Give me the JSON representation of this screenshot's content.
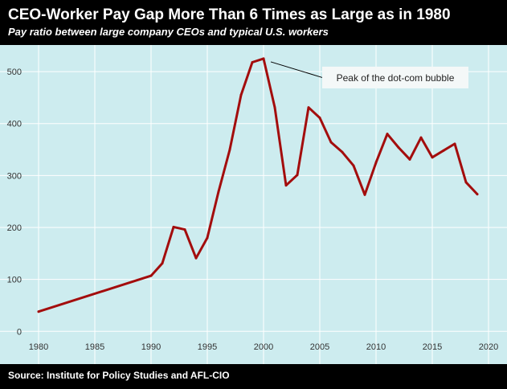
{
  "header": {
    "title": "CEO-Worker Pay Gap More Than 6 Times as Large as in 1980",
    "subtitle": "Pay ratio between large company CEOs and typical U.S. workers"
  },
  "footer": {
    "source": "Source: Institute for Policy Studies and AFL-CIO"
  },
  "colors": {
    "plot_background": "#cdecef",
    "line": "#a30d0d",
    "grid": "#ffffff"
  },
  "chart_data": {
    "type": "line",
    "x": [
      1980,
      1990,
      1991,
      1992,
      1993,
      1994,
      1995,
      1996,
      1997,
      1998,
      1999,
      2000,
      2001,
      2002,
      2003,
      2004,
      2005,
      2006,
      2007,
      2008,
      2009,
      2010,
      2011,
      2012,
      2013,
      2014,
      2015,
      2016,
      2017,
      2018,
      2019
    ],
    "series": [
      {
        "values": [
          38,
          107,
          131,
          201,
          196,
          141,
          180,
          269,
          350,
          455,
          518,
          525,
          431,
          281,
          301,
          431,
          411,
          364,
          345,
          319,
          263,
          325,
          380,
          354,
          331,
          373,
          335,
          348,
          361,
          287,
          264
        ]
      }
    ],
    "xlim": [
      1979,
      2021
    ],
    "ylim": [
      -15,
      545
    ],
    "xticks": [
      1980,
      1985,
      1990,
      1995,
      2000,
      2005,
      2010,
      2015,
      2020
    ],
    "yticks": [
      0,
      100,
      200,
      300,
      400,
      500
    ],
    "grid": true,
    "annotations": [
      {
        "text": "Peak of the dot-com bubble",
        "x": 2000,
        "y": 525
      }
    ]
  }
}
